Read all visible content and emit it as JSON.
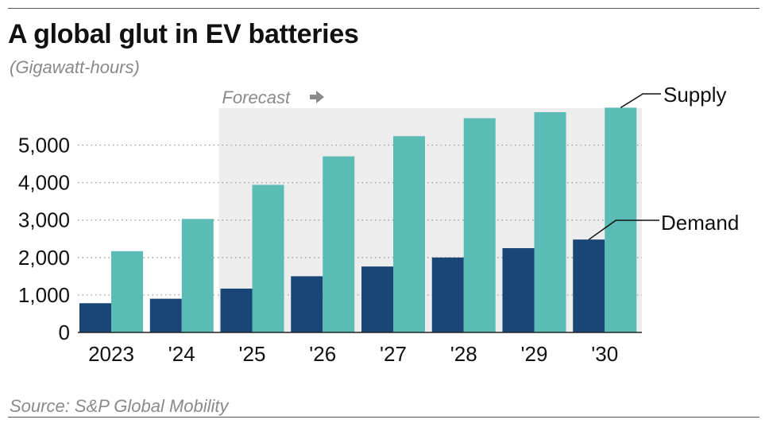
{
  "title": "A global glut in EV batteries",
  "subtitle": "(Gigawatt-hours)",
  "source": "Source: S&P Global Mobility",
  "colors": {
    "demand": "#1a4577",
    "supply": "#5bbcb6",
    "forecast_bg": "#ededed",
    "grid": "#9a9a9a",
    "muted": "#8a8a8a"
  },
  "chart_data": {
    "type": "bar",
    "title": "A global glut in EV batteries",
    "ylabel": "(Gigawatt-hours)",
    "xlabel": "",
    "categories": [
      "2023",
      "'24",
      "'25",
      "'26",
      "'27",
      "'28",
      "'29",
      "'30"
    ],
    "series": [
      {
        "name": "Demand",
        "values": [
          780,
          900,
          1170,
          1500,
          1760,
          2000,
          2250,
          2480
        ]
      },
      {
        "name": "Supply",
        "values": [
          2170,
          3030,
          3940,
          4700,
          5240,
          5720,
          5880,
          6000
        ]
      }
    ],
    "ylim": [
      0,
      6000
    ],
    "yticks": [
      0,
      1000,
      2000,
      3000,
      4000,
      5000
    ],
    "ytick_labels": [
      "0",
      "1,000",
      "2,000",
      "3,000",
      "4,000",
      "5,000"
    ],
    "grid": true,
    "forecast": {
      "label": "Forecast",
      "start_category": "'25"
    },
    "annotations": [
      {
        "text": "Supply",
        "series": "Supply",
        "category": "'30"
      },
      {
        "text": "Demand",
        "series": "Demand",
        "category": "'30"
      }
    ]
  }
}
